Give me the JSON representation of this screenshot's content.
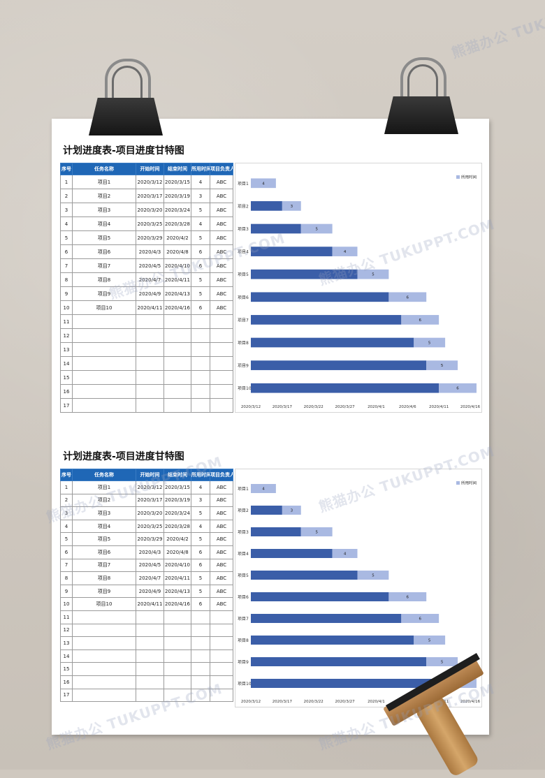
{
  "title": "计划进度表-项目进度甘特图",
  "table": {
    "headers": [
      "序号",
      "任务名称",
      "开始时间",
      "结束时间",
      "所用时间",
      "项目负责人"
    ],
    "rows": [
      [
        "1",
        "项目1",
        "2020/3/12",
        "2020/3/15",
        "4",
        "ABC"
      ],
      [
        "2",
        "项目2",
        "2020/3/17",
        "2020/3/19",
        "3",
        "ABC"
      ],
      [
        "3",
        "项目3",
        "2020/3/20",
        "2020/3/24",
        "5",
        "ABC"
      ],
      [
        "4",
        "项目4",
        "2020/3/25",
        "2020/3/28",
        "4",
        "ABC"
      ],
      [
        "5",
        "项目5",
        "2020/3/29",
        "2020/4/2",
        "5",
        "ABC"
      ],
      [
        "6",
        "项目6",
        "2020/4/3",
        "2020/4/8",
        "6",
        "ABC"
      ],
      [
        "7",
        "项目7",
        "2020/4/5",
        "2020/4/10",
        "6",
        "ABC"
      ],
      [
        "8",
        "项目8",
        "2020/4/7",
        "2020/4/11",
        "5",
        "ABC"
      ],
      [
        "9",
        "项目9",
        "2020/4/9",
        "2020/4/13",
        "5",
        "ABC"
      ],
      [
        "10",
        "项目10",
        "2020/4/11",
        "2020/4/16",
        "6",
        "ABC"
      ],
      [
        "11",
        "",
        "",
        "",
        "",
        ""
      ],
      [
        "12",
        "",
        "",
        "",
        "",
        ""
      ],
      [
        "13",
        "",
        "",
        "",
        "",
        ""
      ],
      [
        "14",
        "",
        "",
        "",
        "",
        ""
      ],
      [
        "15",
        "",
        "",
        "",
        "",
        ""
      ],
      [
        "16",
        "",
        "",
        "",
        "",
        ""
      ],
      [
        "17",
        "",
        "",
        "",
        "",
        ""
      ]
    ]
  },
  "watermark": "熊猫办公 TUKUPPT.COM",
  "colors": {
    "header": "#1f67b6",
    "bar_dark": "#3b5ea8",
    "bar_light": "#a9b9e2"
  },
  "chart_data": {
    "type": "bar",
    "orientation": "horizontal-stacked",
    "categories": [
      "项目1",
      "项目2",
      "项目3",
      "项目4",
      "项目5",
      "项目6",
      "项目7",
      "项目8",
      "项目9",
      "项目10"
    ],
    "series": [
      {
        "values": [
          "2020/3/12",
          "2020/3/17",
          "2020/3/20",
          "2020/3/25",
          "2020/3/29",
          "2020/4/3",
          "2020/4/5",
          "2020/4/7",
          "2020/4/9",
          "2020/4/11"
        ]
      },
      {
        "name": "所用时间",
        "values": [
          4,
          3,
          5,
          4,
          5,
          6,
          6,
          5,
          5,
          6
        ]
      }
    ],
    "x_ticks": [
      "2020/3/12",
      "2020/3/17",
      "2020/3/22",
      "2020/3/27",
      "2020/4/1",
      "2020/4/6",
      "2020/4/11",
      "2020/4/16"
    ],
    "xlim": [
      "2020/3/12",
      "2020/4/16"
    ],
    "legend": "top-right"
  }
}
